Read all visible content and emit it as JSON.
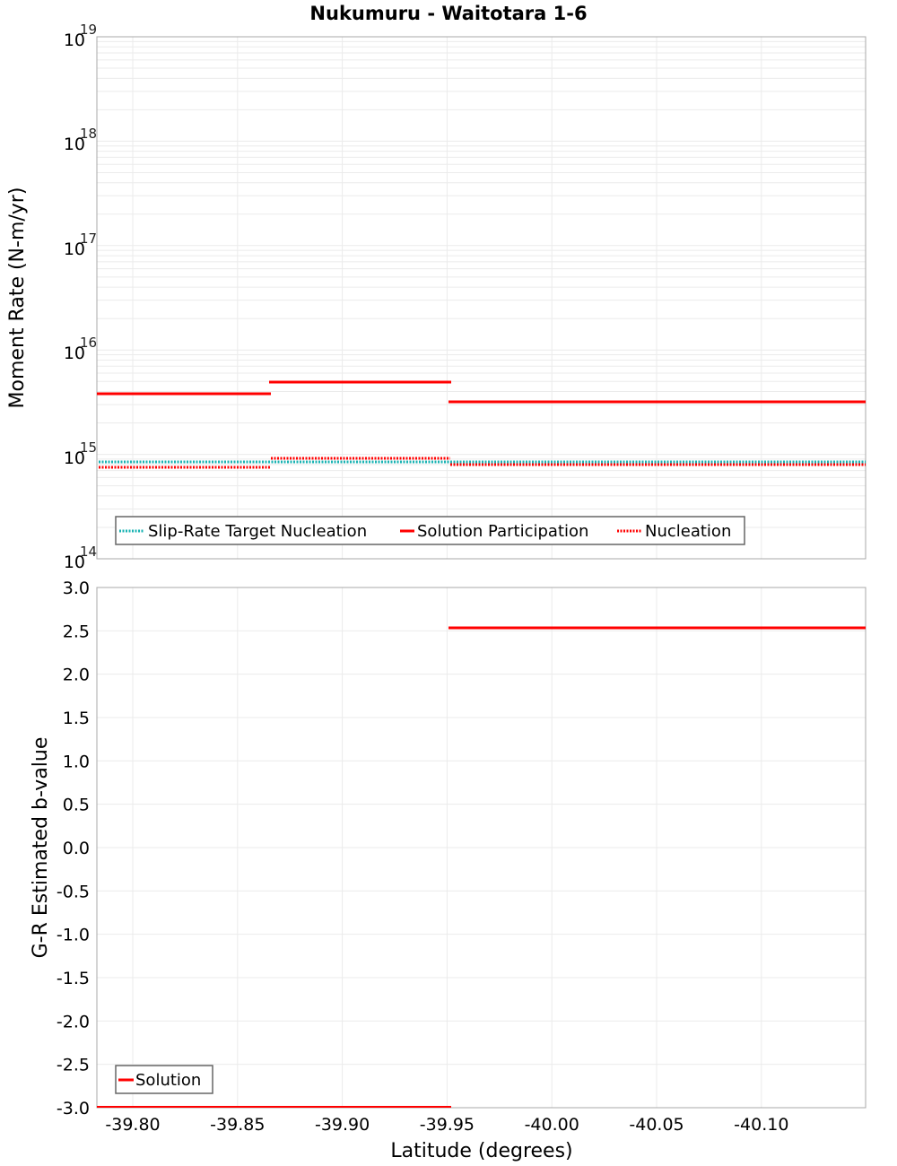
{
  "title": "Nukumuru - Waitotara 1-6",
  "chart_data": [
    {
      "type": "line",
      "panel": "top",
      "title": "Nukumuru - Waitotara 1-6",
      "xlabel": "Latitude (degrees)",
      "ylabel": "Moment Rate (N-m/yr)",
      "yscale": "log",
      "ylim": [
        100000000000000.0,
        1e+19
      ],
      "xlim": [
        -39.783,
        -40.15
      ],
      "y_ticks": [
        "10^14",
        "10^15",
        "10^16",
        "10^17",
        "10^18",
        "10^19"
      ],
      "grid": true,
      "legend_position": "lower-left",
      "segments_x": [
        [
          -39.783,
          -39.866
        ],
        [
          -39.866,
          -39.952
        ],
        [
          -39.952,
          -40.15
        ]
      ],
      "series": [
        {
          "name": "Slip-Rate Target Nucleation",
          "style": "dotted",
          "color": "#1ab3b3",
          "values": [
            850000000000000.0,
            850000000000000.0,
            840000000000000.0
          ]
        },
        {
          "name": "Solution Participation",
          "style": "solid",
          "color": "#ff0000",
          "values": [
            3800000000000000.0,
            4900000000000000.0,
            3200000000000000.0
          ]
        },
        {
          "name": "Nucleation",
          "style": "dotted",
          "color": "#ff0000",
          "values": [
            760000000000000.0,
            920000000000000.0,
            800000000000000.0
          ]
        }
      ]
    },
    {
      "type": "line",
      "panel": "bottom",
      "xlabel": "Latitude (degrees)",
      "ylabel": "G-R Estimated b-value",
      "ylim": [
        -3.0,
        3.0
      ],
      "xlim": [
        -39.783,
        -40.15
      ],
      "y_ticks": [
        "3.0",
        "2.5",
        "2.0",
        "1.5",
        "1.0",
        "0.5",
        "0.0",
        "-0.5",
        "-1.0",
        "-1.5",
        "-2.0",
        "-2.5",
        "-3.0"
      ],
      "x_ticks": [
        "-39.80",
        "-39.85",
        "-39.90",
        "-39.95",
        "-40.00",
        "-40.05",
        "-40.10"
      ],
      "grid": true,
      "legend_position": "lower-left",
      "segments_x": [
        [
          -39.783,
          -39.866
        ],
        [
          -39.866,
          -39.952
        ],
        [
          -39.952,
          -40.15
        ]
      ],
      "series": [
        {
          "name": "Solution",
          "style": "solid",
          "color": "#ff0000",
          "values": [
            -3.0,
            -3.0,
            2.53
          ]
        }
      ]
    }
  ],
  "top": {
    "ylabel": "Moment Rate (N-m/yr)",
    "ytick_base": "10",
    "ytick_exps": [
      "19",
      "18",
      "17",
      "16",
      "15",
      "14"
    ],
    "legend": [
      "Slip-Rate Target Nucleation",
      "Solution Participation",
      "Nucleation"
    ]
  },
  "bottom": {
    "ylabel": "G-R Estimated b-value",
    "yticks": [
      "3.0",
      "2.5",
      "2.0",
      "1.5",
      "1.0",
      "0.5",
      "0.0",
      "-0.5",
      "-1.0",
      "-1.5",
      "-2.0",
      "-2.5",
      "-3.0"
    ],
    "legend": [
      "Solution"
    ]
  },
  "xaxis": {
    "label": "Latitude (degrees)",
    "ticks": [
      "-39.80",
      "-39.85",
      "-39.90",
      "-39.95",
      "-40.00",
      "-40.05",
      "-40.10"
    ]
  },
  "colors": {
    "solution": "#ff0000",
    "target": "#1ab3b3",
    "grid": "#ebebeb",
    "frame": "#a8a8a8"
  }
}
